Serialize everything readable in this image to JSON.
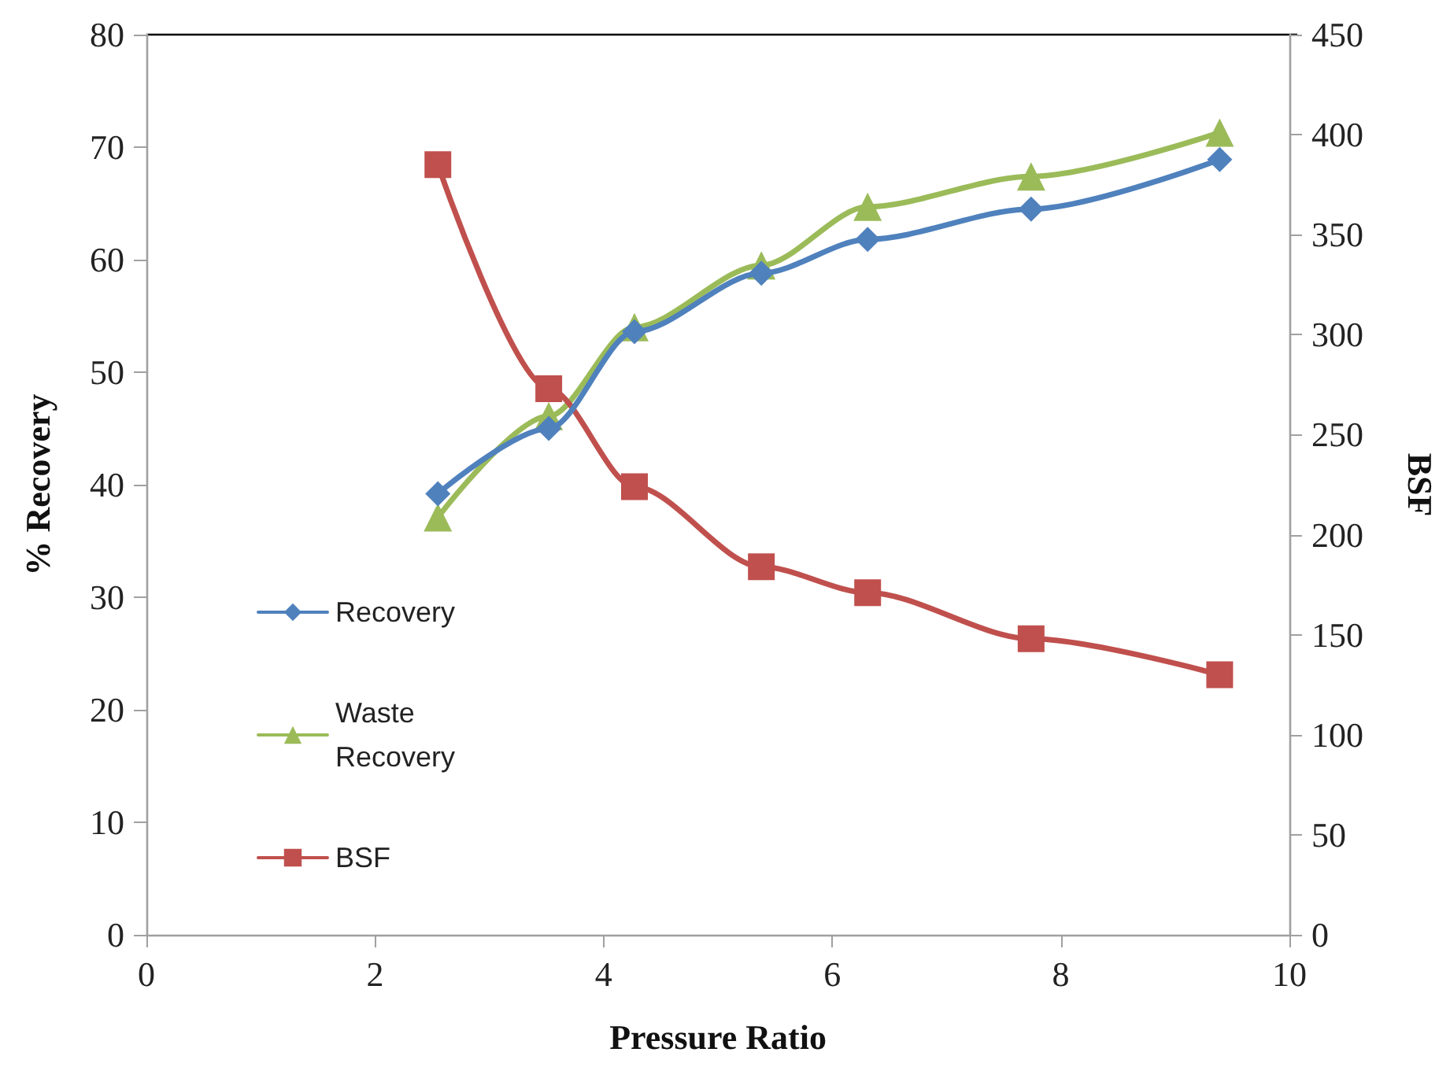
{
  "chart_data": {
    "type": "line",
    "xlabel": "Pressure Ratio",
    "ylabel": "% Recovery",
    "y2label": "BSF",
    "x": [
      2.55,
      3.52,
      4.27,
      5.38,
      6.31,
      7.74,
      9.39
    ],
    "series": [
      {
        "name": "Recovery",
        "color": "#4f81bd",
        "marker": "diamond",
        "values": [
          39.2,
          45.0,
          53.6,
          58.8,
          61.8,
          64.5,
          68.9
        ]
      },
      {
        "name": "Waste Recovery",
        "color": "#9bbb59",
        "marker": "triangle",
        "values": [
          37.1,
          46.1,
          54.0,
          59.5,
          64.7,
          67.4,
          71.3
        ]
      },
      {
        "name": "BSF",
        "color": "#c0504d",
        "marker": "square",
        "axis": "y2",
        "values": [
          385,
          273,
          224,
          184,
          171,
          148,
          130
        ]
      }
    ],
    "xlim": [
      0,
      10
    ],
    "xticks": [
      0,
      2,
      4,
      6,
      8,
      10
    ],
    "ylim": [
      0,
      80
    ],
    "yticks": [
      0,
      10,
      20,
      30,
      40,
      50,
      60,
      70,
      80
    ],
    "y2lim": [
      0,
      450
    ],
    "y2ticks": [
      0,
      50,
      100,
      150,
      200,
      250,
      300,
      350,
      400,
      450
    ],
    "grid": false,
    "legend": "left"
  }
}
